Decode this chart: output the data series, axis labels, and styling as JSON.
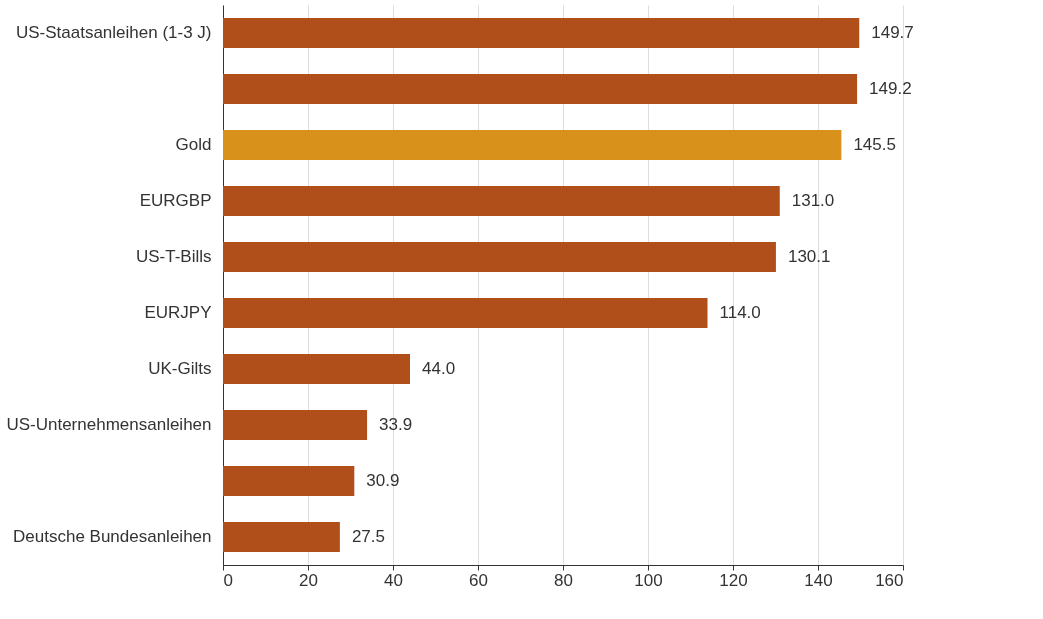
{
  "chart_data": {
    "type": "bar",
    "orientation": "horizontal",
    "categories": [
      "US-Staatsanleihen (1-3 J)",
      null,
      "Gold",
      "EURGBP",
      "US-T-Bills",
      "EURJPY",
      "UK-Gilts",
      "US-Unternehmensanleihen",
      null,
      "Deutsche Bundesanleihen"
    ],
    "values": [
      149.7,
      149.2,
      145.5,
      131.0,
      130.1,
      114.0,
      44.0,
      33.9,
      30.9,
      27.5
    ],
    "colors": [
      "#b04f1a",
      "#b04f1a",
      "#d8921c",
      "#b04f1a",
      "#b04f1a",
      "#b04f1a",
      "#b04f1a",
      "#b04f1a",
      "#b04f1a",
      "#b04f1a"
    ],
    "value_labels": [
      "149.7",
      "149.2",
      "145.5",
      "131.0",
      "130.1",
      "114.0",
      "44.0",
      "33.9",
      "30.9",
      "27.5"
    ],
    "xlim": [
      0,
      160
    ],
    "xticks": [
      0,
      20,
      40,
      60,
      80,
      100,
      120,
      140,
      160
    ],
    "grid": "x"
  }
}
